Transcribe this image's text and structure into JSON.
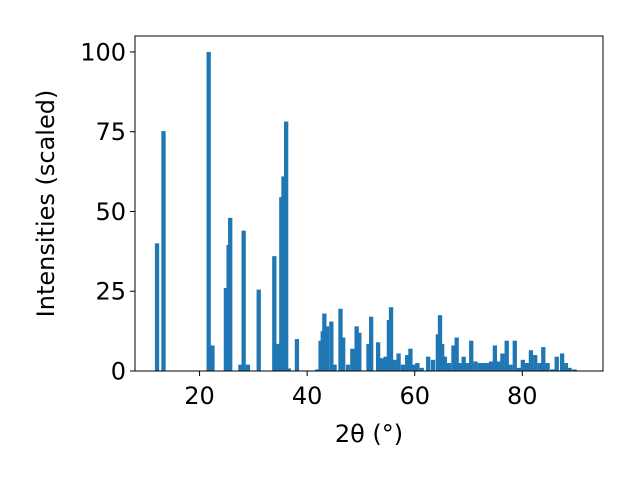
{
  "chart_data": {
    "type": "bar",
    "title": "",
    "xlabel": "2θ (°)",
    "ylabel": "Intensities (scaled)",
    "xlim": [
      8,
      95
    ],
    "ylim": [
      0,
      105
    ],
    "xticks": [
      20,
      40,
      60,
      80
    ],
    "yticks": [
      0,
      25,
      50,
      75,
      100
    ],
    "xtick_labels": [
      "20",
      "40",
      "60",
      "80"
    ],
    "ytick_labels": [
      "0",
      "25",
      "50",
      "75",
      "100"
    ],
    "grid": false,
    "bar_color": "#1f77b4",
    "bar_width_deg": 0.8,
    "x": [
      12.1,
      13.3,
      21.7,
      22.4,
      24.9,
      25.4,
      25.7,
      27.6,
      28.2,
      29.0,
      31.0,
      33.9,
      34.5,
      35.2,
      35.6,
      36.1,
      36.6,
      38.1,
      41.9,
      42.5,
      42.9,
      43.2,
      43.7,
      44.5,
      45.1,
      46.2,
      46.7,
      47.6,
      48.4,
      49.2,
      49.7,
      51.4,
      51.9,
      53.2,
      53.8,
      54.6,
      55.2,
      55.6,
      56.2,
      57.0,
      57.8,
      58.6,
      59.2,
      59.8,
      60.5,
      61.3,
      62.5,
      63.4,
      64.3,
      64.7,
      65.1,
      65.6,
      66.4,
      67.2,
      67.8,
      68.4,
      69.1,
      69.8,
      70.5,
      71.3,
      72.1,
      72.8,
      73.5,
      74.2,
      74.9,
      75.6,
      76.3,
      77.1,
      77.8,
      78.6,
      79.4,
      80.1,
      80.9,
      81.6,
      82.4,
      83.2,
      83.9,
      84.7,
      85.6,
      86.4,
      87.4,
      88.1,
      88.8,
      89.7
    ],
    "values": [
      40,
      75.2,
      100,
      8,
      26,
      39.5,
      48,
      2,
      44,
      2,
      25.5,
      36,
      8.5,
      54.5,
      61,
      78.2,
      0.8,
      10,
      0.5,
      9.5,
      12.5,
      18,
      14,
      15.5,
      2,
      19.5,
      10.5,
      2,
      7,
      14,
      12,
      8.5,
      17,
      9,
      4,
      4.5,
      16,
      20,
      3.5,
      5.5,
      2,
      5,
      7,
      2,
      2.5,
      1,
      4.5,
      3.5,
      11.5,
      17.5,
      8.5,
      4.5,
      2.5,
      8,
      10.5,
      2.5,
      4.5,
      2.5,
      9.5,
      3,
      2.5,
      2.5,
      2.5,
      3,
      8,
      3,
      5.5,
      9.5,
      2,
      9.5,
      1,
      3.5,
      2.5,
      6.5,
      5,
      2.5,
      7.5,
      2.5,
      0.5,
      4.5,
      5.5,
      2.5,
      1,
      0.5
    ]
  }
}
